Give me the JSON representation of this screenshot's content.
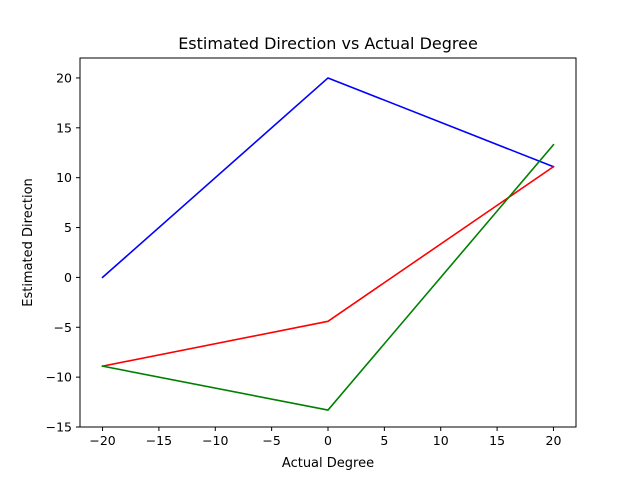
{
  "chart_data": {
    "type": "line",
    "title": "Estimated Direction vs Actual Degree",
    "xlabel": "Actual Degree",
    "ylabel": "Estimated Direction",
    "xlim": [
      -22,
      22
    ],
    "ylim": [
      -15,
      22
    ],
    "xticks": [
      -20,
      -15,
      -10,
      -5,
      0,
      5,
      10,
      15,
      20
    ],
    "yticks": [
      -15,
      -10,
      -5,
      0,
      5,
      10,
      15,
      20
    ],
    "x": [
      -20,
      0,
      20
    ],
    "series": [
      {
        "color": "#0000ff",
        "values": [
          0,
          20,
          11.1
        ]
      },
      {
        "color": "#ff0000",
        "values": [
          -8.9,
          -4.4,
          11.1
        ]
      },
      {
        "color": "#008000",
        "values": [
          -8.9,
          -13.3,
          13.3
        ]
      }
    ],
    "grid": false
  }
}
